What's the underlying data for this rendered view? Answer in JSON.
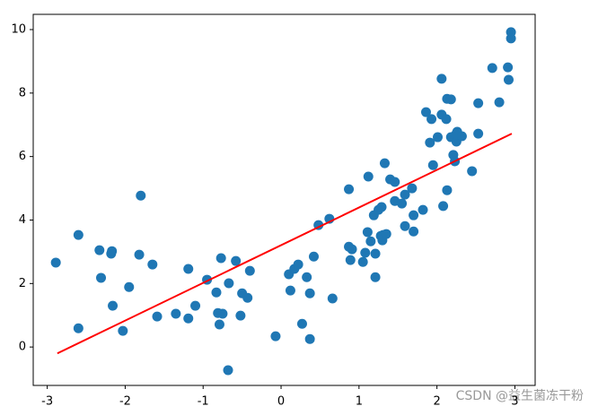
{
  "chart_data": {
    "type": "scatter",
    "x": [
      -2.89,
      -2.6,
      -2.6,
      -2.33,
      -2.31,
      -2.18,
      -2.17,
      -2.16,
      -2.03,
      -1.95,
      -1.82,
      -1.8,
      -1.65,
      -1.59,
      -1.35,
      -1.19,
      -1.19,
      -1.1,
      -0.95,
      -0.83,
      -0.81,
      -0.79,
      -0.77,
      -0.75,
      -0.68,
      -0.67,
      -0.58,
      -0.52,
      -0.5,
      -0.43,
      -0.4,
      -0.07,
      0.1,
      0.12,
      0.17,
      0.22,
      0.27,
      0.33,
      0.37,
      0.37,
      0.42,
      0.48,
      0.62,
      0.66,
      0.87,
      0.87,
      0.89,
      0.91,
      1.05,
      1.08,
      1.11,
      1.12,
      1.15,
      1.19,
      1.21,
      1.21,
      1.25,
      1.28,
      1.29,
      1.3,
      1.31,
      1.33,
      1.35,
      1.4,
      1.46,
      1.46,
      1.55,
      1.59,
      1.59,
      1.68,
      1.7,
      1.7,
      1.82,
      1.86,
      1.93,
      1.91,
      1.95,
      2.01,
      2.06,
      2.06,
      2.08,
      2.12,
      2.13,
      2.13,
      2.18,
      2.18,
      2.21,
      2.23,
      2.24,
      2.25,
      2.26,
      2.27,
      2.32,
      2.45,
      2.53,
      2.53,
      2.71,
      2.8,
      2.91,
      2.92,
      2.95,
      2.95
    ],
    "y": [
      2.66,
      3.53,
      0.59,
      3.05,
      2.18,
      2.94,
      3.02,
      1.3,
      0.51,
      1.89,
      2.91,
      4.77,
      2.6,
      0.96,
      1.05,
      2.46,
      0.9,
      1.3,
      2.12,
      1.72,
      1.07,
      0.71,
      2.8,
      1.05,
      -0.73,
      2.01,
      2.71,
      0.99,
      1.69,
      1.55,
      2.4,
      0.34,
      2.29,
      1.78,
      2.46,
      2.6,
      0.73,
      2.2,
      1.69,
      0.25,
      2.85,
      3.84,
      4.04,
      1.53,
      4.97,
      3.16,
      2.74,
      3.08,
      2.68,
      2.97,
      3.62,
      5.37,
      3.33,
      4.15,
      2.94,
      2.2,
      4.32,
      3.5,
      4.41,
      3.36,
      3.53,
      5.79,
      3.56,
      5.28,
      4.6,
      5.2,
      4.52,
      4.8,
      3.81,
      5.0,
      4.15,
      3.64,
      4.32,
      7.4,
      7.18,
      6.44,
      5.73,
      6.61,
      8.45,
      7.32,
      4.44,
      7.18,
      4.94,
      7.82,
      7.8,
      6.61,
      6.05,
      5.85,
      6.69,
      6.47,
      6.78,
      6.69,
      6.64,
      5.54,
      6.72,
      7.68,
      8.79,
      7.71,
      8.81,
      8.42,
      9.92,
      9.72
    ],
    "color": "#1f77b4",
    "line": {
      "x": [
        -2.87,
        2.96
      ],
      "y": [
        -0.2,
        6.72
      ],
      "color": "#ff0000"
    },
    "xlim": [
      -3.18,
      3.26
    ],
    "ylim": [
      -1.21,
      10.48
    ],
    "xticks": [
      -3,
      -2,
      -1,
      0,
      1,
      2,
      3
    ],
    "yticks": [
      0,
      2,
      4,
      6,
      8,
      10
    ],
    "watermark": "CSDN @益生菌冻干粉"
  }
}
